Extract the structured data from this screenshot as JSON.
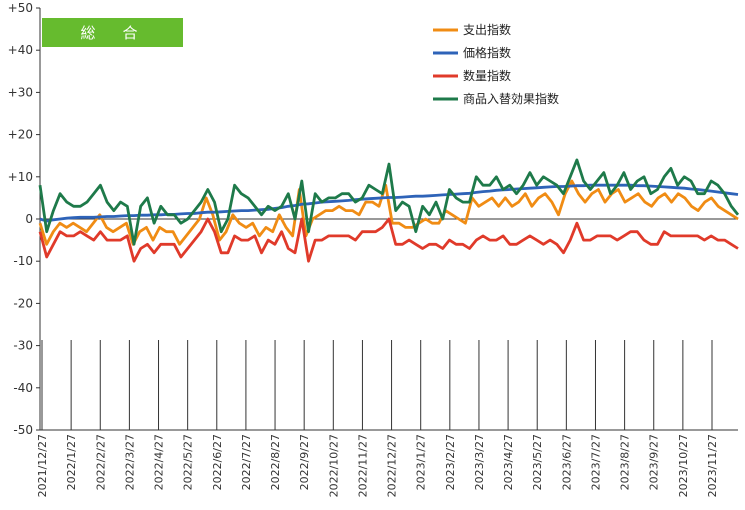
{
  "chart_data": {
    "type": "line",
    "badge": "総　合",
    "badge_color": "#66bb2e",
    "y_ticks": [
      "+50",
      "+40",
      "+30",
      "+20",
      "+10",
      "0",
      "-10",
      "-20",
      "-30",
      "-40",
      "-50"
    ],
    "ylim": [
      -50,
      50
    ],
    "x_tick_labels": [
      "2021/12/27",
      "2022/1/27",
      "2022/2/27",
      "2022/3/27",
      "2022/4/27",
      "2022/5/27",
      "2022/6/27",
      "2022/7/27",
      "2022/8/27",
      "2022/9/27",
      "2022/10/27",
      "2022/11/27",
      "2022/12/27",
      "2023/1/27",
      "2023/2/27",
      "2023/3/27",
      "2023/4/27",
      "2023/5/27",
      "2023/6/27",
      "2023/7/27",
      "2023/8/27",
      "2023/9/27",
      "2023/10/27",
      "2023/11/27"
    ],
    "legend_position": "top-right",
    "grid": false,
    "series": [
      {
        "name": "支出指数",
        "color": "#f08c14",
        "values": [
          -1,
          -6,
          -3,
          -1,
          -2,
          -1,
          -2,
          -3,
          -1,
          1,
          -2,
          -3,
          -2,
          -1,
          -6,
          -3,
          -2,
          -5,
          -2,
          -3,
          -3,
          -6,
          -4,
          -2,
          0,
          5,
          1,
          -5,
          -3,
          1,
          -1,
          -2,
          -1,
          -4,
          -2,
          -3,
          1,
          -2,
          -4,
          7,
          -4,
          0,
          1,
          2,
          2,
          3,
          2,
          2,
          1,
          4,
          4,
          3,
          8,
          -1,
          -1,
          -2,
          -2,
          -1,
          0,
          -1,
          -1,
          2,
          1,
          0,
          -1,
          5,
          3,
          4,
          5,
          3,
          5,
          3,
          4,
          6,
          3,
          5,
          6,
          4,
          1,
          6,
          9,
          6,
          4,
          6,
          7,
          4,
          6,
          7,
          4,
          5,
          6,
          4,
          3,
          5,
          6,
          4,
          6,
          5,
          3,
          2,
          4,
          5,
          3,
          2,
          1,
          0
        ]
      },
      {
        "name": "価格指数",
        "color": "#2e63b8",
        "values": [
          0,
          -0.5,
          -0.2,
          0,
          0.2,
          0.3,
          0.4,
          0.4,
          0.4,
          0.5,
          0.6,
          0.6,
          0.7,
          0.8,
          0.8,
          0.9,
          0.9,
          1,
          1,
          1.1,
          1.1,
          1.2,
          1.3,
          1.3,
          1.5,
          1.6,
          1.6,
          1.7,
          1.8,
          1.9,
          2,
          2,
          2.1,
          2.2,
          2.3,
          2.5,
          2.7,
          3,
          3.2,
          3.5,
          3.6,
          3.8,
          4,
          4.1,
          4.2,
          4.3,
          4.4,
          4.6,
          4.7,
          4.8,
          4.9,
          5,
          5.1,
          5.1,
          5.2,
          5.3,
          5.4,
          5.4,
          5.5,
          5.6,
          5.7,
          5.8,
          5.9,
          6,
          6.1,
          6.3,
          6.5,
          6.6,
          6.8,
          6.9,
          7,
          7.1,
          7.2,
          7.3,
          7.4,
          7.5,
          7.6,
          7.7,
          7.7,
          7.8,
          7.9,
          7.9,
          8,
          8,
          8,
          8,
          8,
          8,
          8,
          7.9,
          7.9,
          7.8,
          7.7,
          7.6,
          7.5,
          7.4,
          7.3,
          7.1,
          7,
          6.8,
          6.6,
          6.4,
          6.2,
          6,
          5.8
        ]
      },
      {
        "name": "数量指数",
        "color": "#e03a2a",
        "values": [
          -3,
          -9,
          -6,
          -3,
          -4,
          -4,
          -3,
          -4,
          -5,
          -3,
          -5,
          -5,
          -5,
          -4,
          -10,
          -7,
          -6,
          -8,
          -6,
          -6,
          -6,
          -9,
          -7,
          -5,
          -3,
          0,
          -3,
          -8,
          -8,
          -4,
          -5,
          -5,
          -4,
          -8,
          -5,
          -6,
          -3,
          -7,
          -8,
          0,
          -10,
          -5,
          -5,
          -4,
          -4,
          -4,
          -4,
          -5,
          -3,
          -3,
          -3,
          -2,
          0,
          -6,
          -6,
          -5,
          -6,
          -7,
          -6,
          -6,
          -7,
          -5,
          -6,
          -6,
          -7,
          -5,
          -4,
          -5,
          -5,
          -4,
          -6,
          -6,
          -5,
          -4,
          -5,
          -6,
          -5,
          -6,
          -8,
          -5,
          -1,
          -5,
          -5,
          -4,
          -4,
          -4,
          -5,
          -4,
          -3,
          -3,
          -5,
          -6,
          -6,
          -3,
          -4,
          -4,
          -4,
          -4,
          -4,
          -5,
          -4,
          -5,
          -5,
          -6,
          -7
        ]
      },
      {
        "name": "商品入替効果指数",
        "color": "#1e7a4a",
        "values": [
          8,
          -3,
          2,
          6,
          4,
          3,
          3,
          4,
          6,
          8,
          4,
          2,
          4,
          3,
          -6,
          3,
          5,
          -1,
          3,
          1,
          1,
          -1,
          0,
          2,
          4,
          7,
          4,
          -3,
          0,
          8,
          6,
          5,
          3,
          1,
          3,
          2,
          3,
          6,
          0,
          9,
          -3,
          6,
          4,
          5,
          5,
          6,
          6,
          4,
          5,
          8,
          7,
          6,
          13,
          2,
          4,
          3,
          -3,
          3,
          1,
          4,
          0,
          7,
          5,
          4,
          4,
          10,
          8,
          8,
          10,
          7,
          8,
          6,
          8,
          11,
          8,
          10,
          9,
          8,
          6,
          10,
          14,
          9,
          7,
          9,
          11,
          6,
          8,
          11,
          7,
          9,
          10,
          6,
          7,
          10,
          12,
          8,
          10,
          9,
          6,
          6,
          9,
          8,
          6,
          3,
          1
        ]
      }
    ]
  }
}
